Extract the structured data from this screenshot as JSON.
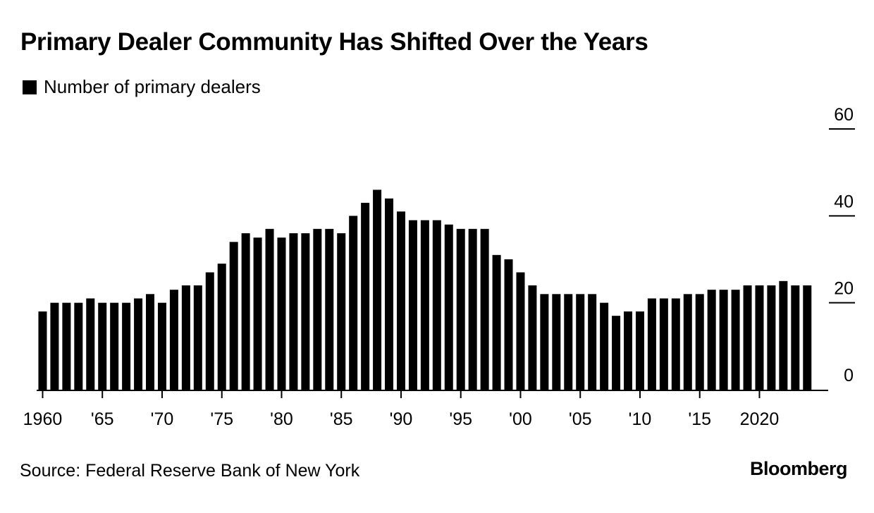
{
  "title": "Primary Dealer Community Has Shifted Over the Years",
  "legend": {
    "label": "Number of primary dealers"
  },
  "source": "Source: Federal Reserve Bank of New York",
  "brand": "Bloomberg",
  "colors": {
    "bar": "#000000",
    "axis": "#000000",
    "text": "#000000"
  },
  "chart_data": {
    "type": "bar",
    "title": "Primary Dealer Community Has Shifted Over the Years",
    "xlabel": "",
    "ylabel": "",
    "ylim": [
      0,
      60
    ],
    "y_ticks": [
      0,
      20,
      40,
      60
    ],
    "y_tick_labels": [
      "0",
      "20",
      "40",
      "60"
    ],
    "y_axis_side": "right",
    "grid": false,
    "legend_position": "top-left",
    "x_ticks": [
      {
        "year": 1960,
        "label": "1960"
      },
      {
        "year": 1965,
        "label": "'65"
      },
      {
        "year": 1970,
        "label": "'70"
      },
      {
        "year": 1975,
        "label": "'75"
      },
      {
        "year": 1980,
        "label": "'80"
      },
      {
        "year": 1985,
        "label": "'85"
      },
      {
        "year": 1990,
        "label": "'90"
      },
      {
        "year": 1995,
        "label": "'95"
      },
      {
        "year": 2000,
        "label": "'00"
      },
      {
        "year": 2005,
        "label": "'05"
      },
      {
        "year": 2010,
        "label": "'10"
      },
      {
        "year": 2015,
        "label": "'15"
      },
      {
        "year": 2020,
        "label": "2020"
      }
    ],
    "categories": [
      1960,
      1961,
      1962,
      1963,
      1964,
      1965,
      1966,
      1967,
      1968,
      1969,
      1970,
      1971,
      1972,
      1973,
      1974,
      1975,
      1976,
      1977,
      1978,
      1979,
      1980,
      1981,
      1982,
      1983,
      1984,
      1985,
      1986,
      1987,
      1988,
      1989,
      1990,
      1991,
      1992,
      1993,
      1994,
      1995,
      1996,
      1997,
      1998,
      1999,
      2000,
      2001,
      2002,
      2003,
      2004,
      2005,
      2006,
      2007,
      2008,
      2009,
      2010,
      2011,
      2012,
      2013,
      2014,
      2015,
      2016,
      2017,
      2018,
      2019,
      2020,
      2021,
      2022,
      2023,
      2024
    ],
    "series": [
      {
        "name": "Number of primary dealers",
        "values": [
          18,
          20,
          20,
          20,
          21,
          20,
          20,
          20,
          21,
          22,
          20,
          23,
          24,
          24,
          27,
          29,
          34,
          36,
          35,
          37,
          35,
          36,
          36,
          37,
          37,
          36,
          40,
          43,
          46,
          44,
          41,
          39,
          39,
          39,
          38,
          37,
          37,
          37,
          31,
          30,
          27,
          24,
          22,
          22,
          22,
          22,
          22,
          20,
          17,
          18,
          18,
          21,
          21,
          21,
          22,
          22,
          23,
          23,
          23,
          24,
          24,
          24,
          25,
          24,
          24
        ]
      }
    ]
  }
}
